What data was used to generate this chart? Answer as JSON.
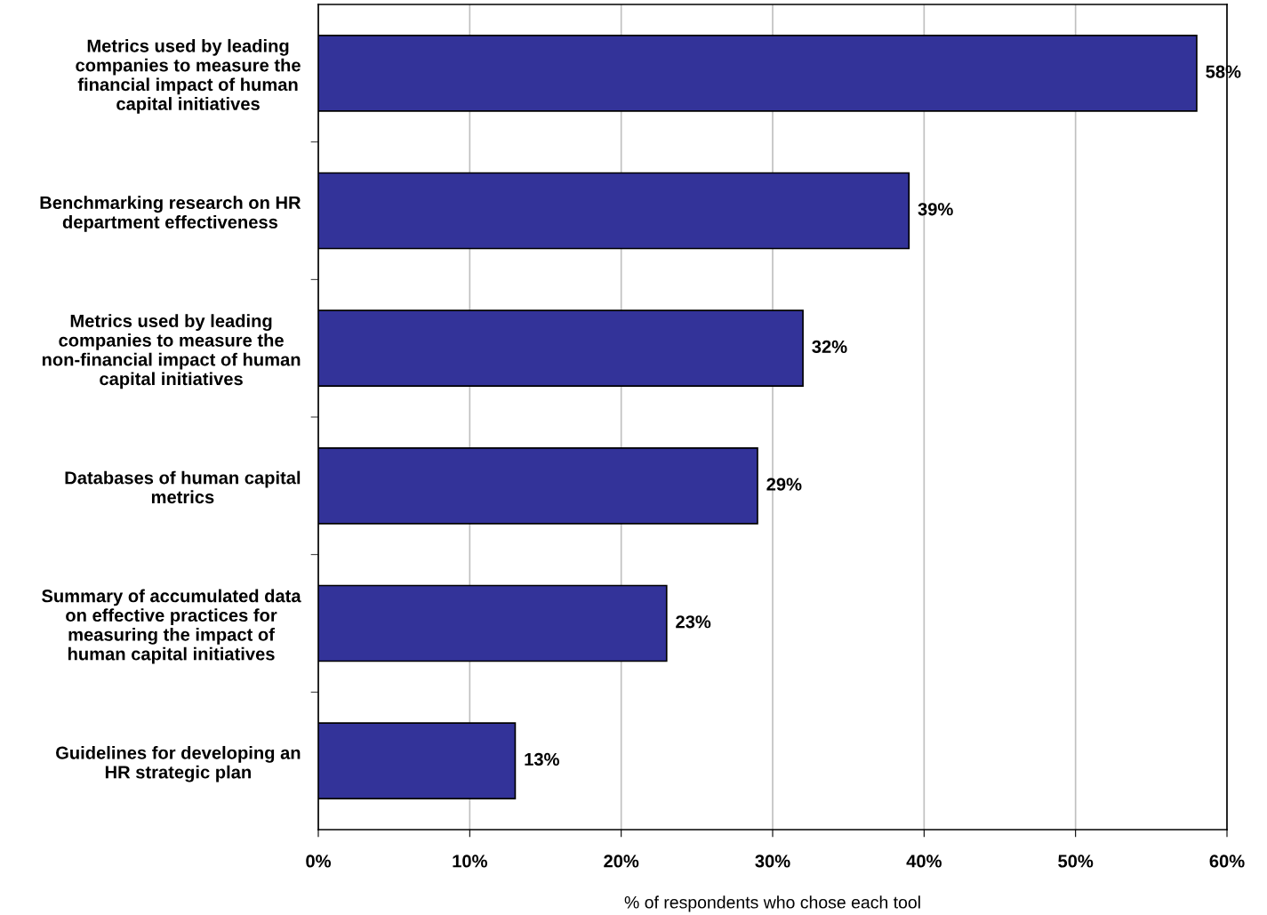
{
  "chart_data": {
    "type": "bar",
    "orientation": "horizontal",
    "xlabel": "% of respondents who chose each tool",
    "categories": [
      "Metrics used by leading\ncompanies to measure the\nfinancial impact of human\ncapital initiatives",
      "Benchmarking research on HR\ndepartment effectiveness",
      "Metrics used by leading\ncompanies to measure the\nnon-financial impact of human\ncapital initiatives",
      "Databases of human capital\nmetrics",
      "Summary of accumulated data\non effective practices for\nmeasuring the impact of\nhuman capital initiatives",
      "Guidelines for developing an\nHR strategic plan"
    ],
    "values": [
      58,
      39,
      32,
      29,
      23,
      13
    ],
    "value_labels": [
      "58%",
      "39%",
      "32%",
      "29%",
      "23%",
      "13%"
    ],
    "color": "#333399",
    "xlim": [
      0,
      60
    ],
    "xticks": [
      {
        "value": 0,
        "label": "0%"
      },
      {
        "value": 10,
        "label": "10%"
      },
      {
        "value": 20,
        "label": "20%"
      },
      {
        "value": 30,
        "label": "30%"
      },
      {
        "value": 40,
        "label": "40%"
      },
      {
        "value": 50,
        "label": "50%"
      },
      {
        "value": 60,
        "label": "60%"
      }
    ],
    "grid": "x",
    "legend": false
  }
}
